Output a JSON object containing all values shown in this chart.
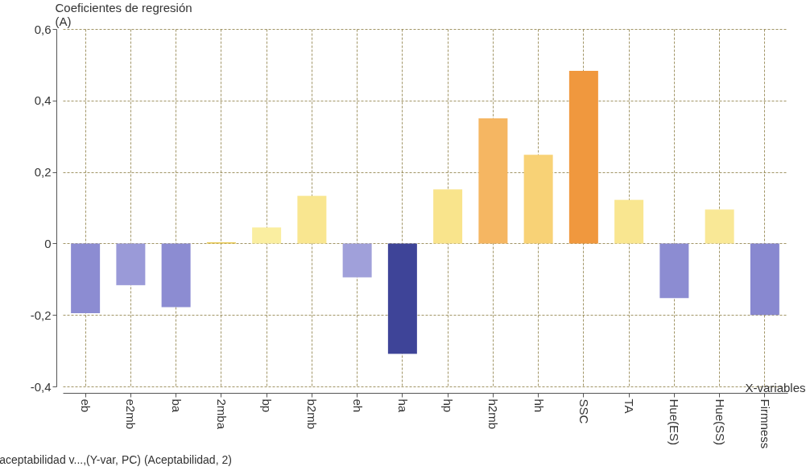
{
  "chart_data": {
    "type": "bar",
    "ylabel": "Coeficientes de regresión\n(A)",
    "xlabel": "X-variables",
    "categories": [
      "eb",
      "e2mb",
      "ba",
      "2mba",
      "bp",
      "b2mb",
      "eh",
      "ha",
      "hp",
      "h2mb",
      "hh",
      "SSC",
      "TA",
      "Hue(ES)",
      "Hue(SS)",
      "Firmness"
    ],
    "values": [
      -0.195,
      -0.117,
      -0.178,
      0.003,
      0.045,
      0.133,
      -0.095,
      -0.309,
      0.151,
      0.35,
      0.248,
      0.483,
      0.122,
      -0.153,
      0.095,
      -0.2
    ],
    "colors": [
      "#8c8cd2",
      "#9a9ad8",
      "#8c8cd2",
      "#e8c850",
      "#faeea0",
      "#f9e690",
      "#a0a0da",
      "#3e4498",
      "#f9e48c",
      "#f5b662",
      "#f8d276",
      "#f0983e",
      "#f9e690",
      "#8c8cd2",
      "#f9e896",
      "#8888d0"
    ],
    "ylim": [
      -0.4,
      0.6
    ],
    "yticks": [
      {
        "value": -0.4,
        "label": "-0,4"
      },
      {
        "value": -0.2,
        "label": "-0,2"
      },
      {
        "value": 0,
        "label": "0"
      },
      {
        "value": 0.2,
        "label": "0,2"
      },
      {
        "value": 0.4,
        "label": "0,4"
      },
      {
        "value": 0.6,
        "label": "0,6"
      }
    ],
    "grid": true,
    "annotations": [
      "aceptabilidad v...,(Y-var, PC) (Aceptabilidad, 2)"
    ]
  }
}
